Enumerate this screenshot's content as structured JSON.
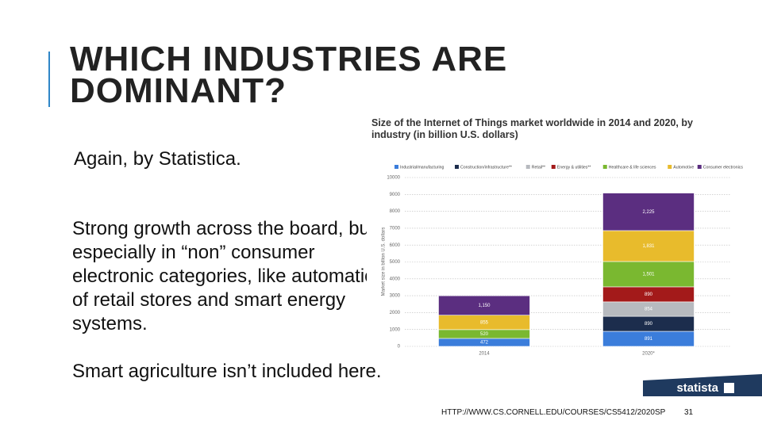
{
  "slide": {
    "title": "WHICH INDUSTRIES ARE DOMINANT?",
    "bullets": [
      "Again, by Statistica.",
      "Strong growth across the board, but especially in “non” consumer electronic categories, like automation of retail stores and smart energy systems.",
      "Smart agriculture isn’t included here."
    ],
    "footer_url": "HTTP://WWW.CS.CORNELL.EDU/COURSES/CS5412/2020SP",
    "page_number": "31",
    "logo": "statista"
  },
  "chart_data": {
    "type": "stacked_bar",
    "title": "Size of the Internet of Things market worldwide in 2014 and 2020, by industry (in billion U.S. dollars)",
    "y_label": "Market size in billion U.S. dollars",
    "categories": [
      "2014",
      "2020*"
    ],
    "series": [
      {
        "name": "Industrial/manufacturing",
        "color": "#3b7ddb",
        "values": [
          472,
          891
        ]
      },
      {
        "name": "Construction/infrastructure**",
        "color": "#1c2d4d",
        "values": [
          null,
          890
        ]
      },
      {
        "name": "Retail**",
        "color": "#b7babf",
        "values": [
          null,
          854
        ]
      },
      {
        "name": "Energy & utilities**",
        "color": "#a31a1a",
        "values": [
          null,
          890
        ]
      },
      {
        "name": "Healthcare & life sciences",
        "color": "#7ab830",
        "values": [
          520,
          1501
        ],
        "value_labels": [
          "520",
          "1,501"
        ]
      },
      {
        "name": "Automotive",
        "color": "#e8bb2c",
        "values": [
          855,
          1831
        ],
        "value_labels": [
          "855",
          "1,831"
        ]
      },
      {
        "name": "Consumer electronics",
        "color": "#5b2e80",
        "values": [
          1150,
          2225
        ],
        "value_labels": [
          "1,150",
          "2,225"
        ]
      }
    ],
    "ylim": [
      0,
      10000
    ],
    "yticks": [
      0,
      1000,
      2000,
      3000,
      4000,
      5000,
      6000,
      7000,
      8000,
      9000,
      10000
    ],
    "grid": true
  }
}
